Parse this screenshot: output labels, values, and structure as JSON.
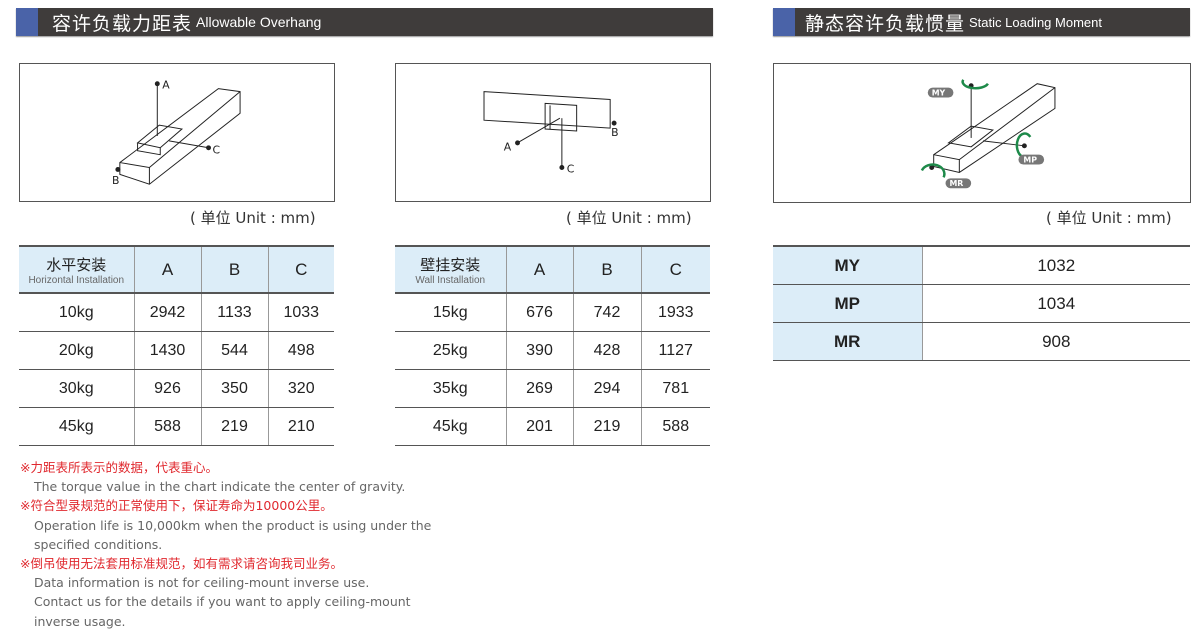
{
  "left_header": {
    "zh": "容许负载力距表",
    "en": "Allowable Overhang"
  },
  "right_header": {
    "zh": "静态容许负载惯量",
    "en": "Static Loading Moment"
  },
  "unit_label": "( 单位 Unit : mm)",
  "diagram_labels": {
    "a": "A",
    "b": "B",
    "c": "C",
    "my": "MY",
    "mp": "MP",
    "mr": "MR"
  },
  "colors": {
    "header_bg": "#3f3c3b",
    "header_accent": "#4a63a8",
    "table_header_bg": "#dcedf8",
    "note_red": "#e0282e",
    "arrow_green": "#1e8a4a"
  },
  "horizontal_table": {
    "title_zh": "水平安装",
    "title_en": "Horizontal Installation",
    "columns": [
      "A",
      "B",
      "C"
    ],
    "rows": [
      [
        "10kg",
        "2942",
        "1133",
        "1033"
      ],
      [
        "20kg",
        "1430",
        "544",
        "498"
      ],
      [
        "30kg",
        "926",
        "350",
        "320"
      ],
      [
        "45kg",
        "588",
        "219",
        "210"
      ]
    ]
  },
  "wall_table": {
    "title_zh": "壁挂安装",
    "title_en": "Wall Installation",
    "columns": [
      "A",
      "B",
      "C"
    ],
    "rows": [
      [
        "15kg",
        "676",
        "742",
        "1933"
      ],
      [
        "25kg",
        "390",
        "428",
        "1127"
      ],
      [
        "35kg",
        "269",
        "294",
        "781"
      ],
      [
        "45kg",
        "201",
        "219",
        "588"
      ]
    ]
  },
  "moment_table": {
    "rows": [
      [
        "MY",
        "1032"
      ],
      [
        "MP",
        "1034"
      ],
      [
        "MR",
        "908"
      ]
    ]
  },
  "notes": [
    {
      "zh": "※力距表所表示的数据，代表重心。",
      "en": [
        "The torque value in the chart indicate the center of gravity."
      ]
    },
    {
      "zh": "※符合型录规范的正常使用下，保证寿命为10000公里。",
      "en": [
        "Operation life is 10,000km when the product is using under the",
        "specified conditions."
      ]
    },
    {
      "zh": "※倒吊使用无法套用标准规范，如有需求请咨询我司业务。",
      "en": [
        "Data information is not for ceiling-mount inverse use.",
        "Contact us for the details if you want to apply ceiling-mount",
        "inverse usage."
      ]
    }
  ]
}
